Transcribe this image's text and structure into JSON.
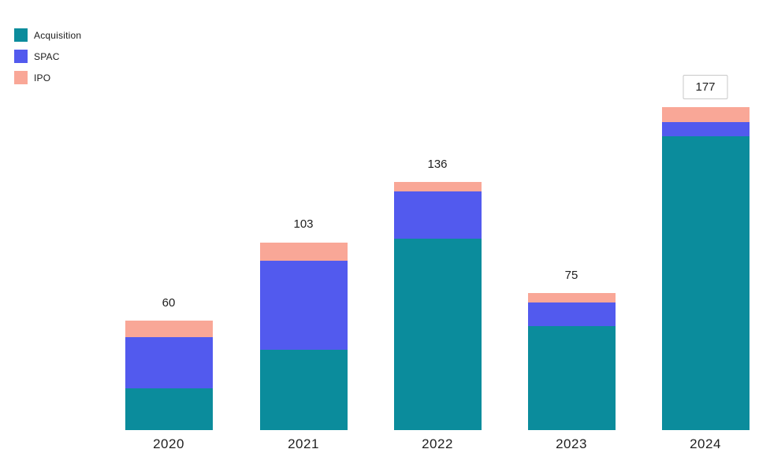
{
  "page": {
    "background": "#ffffff"
  },
  "chart_data": {
    "type": "bar",
    "stacked": true,
    "title": "",
    "xlabel": "",
    "ylabel": "",
    "categories": [
      "2020",
      "2021",
      "2022",
      "2023",
      "2024"
    ],
    "series": [
      {
        "name": "Acquisition",
        "color": "#0b8c9c",
        "values": [
          23,
          44,
          105,
          57,
          161
        ]
      },
      {
        "name": "SPAC",
        "color": "#525aee",
        "values": [
          28,
          49,
          26,
          13,
          8
        ]
      },
      {
        "name": "IPO",
        "color": "#f9a797",
        "values": [
          9,
          10,
          5,
          5,
          8
        ]
      }
    ],
    "totals": [
      60,
      103,
      136,
      75,
      177
    ],
    "total_labels_shown": true,
    "boxed_total_categories": [
      "2024"
    ],
    "ylim": [
      0,
      195
    ],
    "grid": false,
    "y_axis_visible": false,
    "x_axis_line_visible": false,
    "legend_position": "top-left",
    "colors": {
      "total_label": "#212121",
      "year_label": "#1f1f1f",
      "box_border": "#c9c9c9",
      "box_background": "#ffffff"
    }
  }
}
